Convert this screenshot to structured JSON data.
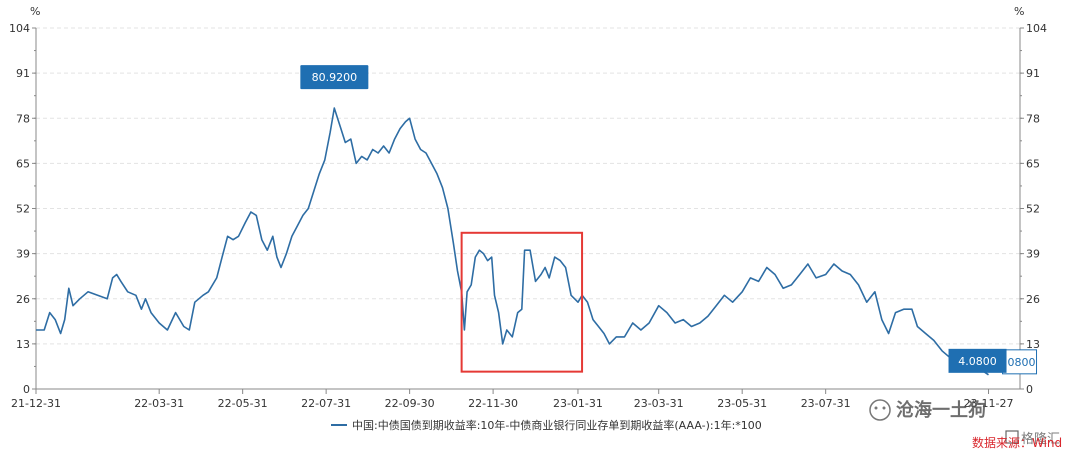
{
  "chart_data": {
    "type": "line",
    "unit_left": "%",
    "unit_right": "%",
    "ylim": [
      0,
      104
    ],
    "y_ticks": [
      0,
      13,
      26,
      39,
      52,
      65,
      78,
      91,
      104
    ],
    "x_range": [
      "2021-12-31",
      "2023-12-20"
    ],
    "x_ticks": [
      {
        "date": "2021-12-31",
        "label": "21-12-31"
      },
      {
        "date": "2022-03-31",
        "label": "22-03-31"
      },
      {
        "date": "2022-05-31",
        "label": "22-05-31"
      },
      {
        "date": "2022-07-31",
        "label": "22-07-31"
      },
      {
        "date": "2022-09-30",
        "label": "22-09-30"
      },
      {
        "date": "2022-11-30",
        "label": "22-11-30"
      },
      {
        "date": "2023-01-31",
        "label": "23-01-31"
      },
      {
        "date": "2023-03-31",
        "label": "23-03-31"
      },
      {
        "date": "2023-05-31",
        "label": "23-05-31"
      },
      {
        "date": "2023-07-31",
        "label": "23-07-31"
      },
      {
        "date": "2023-11-27",
        "label": "23-11-27"
      }
    ],
    "series": [
      {
        "name": "中国:中债国债到期收益率:10年-中债商业银行同业存单到期收益率(AAA-):1年:*100",
        "color": "#2e6da4",
        "points": [
          [
            "2021-12-31",
            17
          ],
          [
            "2022-01-06",
            17
          ],
          [
            "2022-01-10",
            22
          ],
          [
            "2022-01-14",
            20
          ],
          [
            "2022-01-18",
            16
          ],
          [
            "2022-01-21",
            20
          ],
          [
            "2022-01-24",
            29
          ],
          [
            "2022-01-27",
            24
          ],
          [
            "2022-02-01",
            26
          ],
          [
            "2022-02-07",
            28
          ],
          [
            "2022-02-14",
            27
          ],
          [
            "2022-02-21",
            26
          ],
          [
            "2022-02-25",
            32
          ],
          [
            "2022-02-28",
            33
          ],
          [
            "2022-03-03",
            31
          ],
          [
            "2022-03-08",
            28
          ],
          [
            "2022-03-14",
            27
          ],
          [
            "2022-03-18",
            23
          ],
          [
            "2022-03-21",
            26
          ],
          [
            "2022-03-25",
            22
          ],
          [
            "2022-03-31",
            19
          ],
          [
            "2022-04-06",
            17
          ],
          [
            "2022-04-12",
            22
          ],
          [
            "2022-04-18",
            18
          ],
          [
            "2022-04-22",
            17
          ],
          [
            "2022-04-26",
            25
          ],
          [
            "2022-05-02",
            27
          ],
          [
            "2022-05-06",
            28
          ],
          [
            "2022-05-12",
            32
          ],
          [
            "2022-05-16",
            38
          ],
          [
            "2022-05-20",
            44
          ],
          [
            "2022-05-24",
            43
          ],
          [
            "2022-05-28",
            44
          ],
          [
            "2022-06-02",
            48
          ],
          [
            "2022-06-06",
            51
          ],
          [
            "2022-06-10",
            50
          ],
          [
            "2022-06-14",
            43
          ],
          [
            "2022-06-18",
            40
          ],
          [
            "2022-06-22",
            44
          ],
          [
            "2022-06-25",
            38
          ],
          [
            "2022-06-28",
            35
          ],
          [
            "2022-07-02",
            39
          ],
          [
            "2022-07-06",
            44
          ],
          [
            "2022-07-10",
            47
          ],
          [
            "2022-07-14",
            50
          ],
          [
            "2022-07-18",
            52
          ],
          [
            "2022-07-22",
            57
          ],
          [
            "2022-07-26",
            62
          ],
          [
            "2022-07-30",
            66
          ],
          [
            "2022-08-03",
            74
          ],
          [
            "2022-08-06",
            80.92
          ],
          [
            "2022-08-10",
            76
          ],
          [
            "2022-08-14",
            71
          ],
          [
            "2022-08-18",
            72
          ],
          [
            "2022-08-22",
            65
          ],
          [
            "2022-08-26",
            67
          ],
          [
            "2022-08-30",
            66
          ],
          [
            "2022-09-03",
            69
          ],
          [
            "2022-09-07",
            68
          ],
          [
            "2022-09-11",
            70
          ],
          [
            "2022-09-15",
            68
          ],
          [
            "2022-09-19",
            72
          ],
          [
            "2022-09-23",
            75
          ],
          [
            "2022-09-27",
            77
          ],
          [
            "2022-09-30",
            78
          ],
          [
            "2022-10-04",
            72
          ],
          [
            "2022-10-08",
            69
          ],
          [
            "2022-10-12",
            68
          ],
          [
            "2022-10-16",
            65
          ],
          [
            "2022-10-20",
            62
          ],
          [
            "2022-10-24",
            58
          ],
          [
            "2022-10-28",
            52
          ],
          [
            "2022-11-01",
            42
          ],
          [
            "2022-11-04",
            34
          ],
          [
            "2022-11-07",
            28
          ],
          [
            "2022-11-09",
            17
          ],
          [
            "2022-11-11",
            28
          ],
          [
            "2022-11-14",
            30
          ],
          [
            "2022-11-17",
            38
          ],
          [
            "2022-11-20",
            40
          ],
          [
            "2022-11-23",
            39
          ],
          [
            "2022-11-26",
            37
          ],
          [
            "2022-11-29",
            38
          ],
          [
            "2022-12-01",
            27
          ],
          [
            "2022-12-04",
            22
          ],
          [
            "2022-12-07",
            13
          ],
          [
            "2022-12-10",
            17
          ],
          [
            "2022-12-14",
            15
          ],
          [
            "2022-12-18",
            22
          ],
          [
            "2022-12-21",
            23
          ],
          [
            "2022-12-23",
            40
          ],
          [
            "2022-12-27",
            40
          ],
          [
            "2022-12-31",
            31
          ],
          [
            "2023-01-04",
            33
          ],
          [
            "2023-01-07",
            35
          ],
          [
            "2023-01-10",
            32
          ],
          [
            "2023-01-14",
            38
          ],
          [
            "2023-01-18",
            37
          ],
          [
            "2023-01-22",
            35
          ],
          [
            "2023-01-26",
            27
          ],
          [
            "2023-01-31",
            25
          ],
          [
            "2023-02-03",
            27
          ],
          [
            "2023-02-07",
            25
          ],
          [
            "2023-02-11",
            20
          ],
          [
            "2023-02-15",
            18
          ],
          [
            "2023-02-19",
            16
          ],
          [
            "2023-02-23",
            13
          ],
          [
            "2023-02-28",
            15
          ],
          [
            "2023-03-06",
            15
          ],
          [
            "2023-03-12",
            19
          ],
          [
            "2023-03-18",
            17
          ],
          [
            "2023-03-24",
            19
          ],
          [
            "2023-03-31",
            24
          ],
          [
            "2023-04-06",
            22
          ],
          [
            "2023-04-12",
            19
          ],
          [
            "2023-04-18",
            20
          ],
          [
            "2023-04-24",
            18
          ],
          [
            "2023-04-30",
            19
          ],
          [
            "2023-05-06",
            21
          ],
          [
            "2023-05-12",
            24
          ],
          [
            "2023-05-18",
            27
          ],
          [
            "2023-05-24",
            25
          ],
          [
            "2023-05-31",
            28
          ],
          [
            "2023-06-06",
            32
          ],
          [
            "2023-06-12",
            31
          ],
          [
            "2023-06-18",
            35
          ],
          [
            "2023-06-24",
            33
          ],
          [
            "2023-06-30",
            29
          ],
          [
            "2023-07-06",
            30
          ],
          [
            "2023-07-12",
            33
          ],
          [
            "2023-07-18",
            36
          ],
          [
            "2023-07-24",
            32
          ],
          [
            "2023-07-31",
            33
          ],
          [
            "2023-08-06",
            36
          ],
          [
            "2023-08-12",
            34
          ],
          [
            "2023-08-18",
            33
          ],
          [
            "2023-08-24",
            30
          ],
          [
            "2023-08-30",
            25
          ],
          [
            "2023-09-05",
            28
          ],
          [
            "2023-09-10",
            20
          ],
          [
            "2023-09-15",
            16
          ],
          [
            "2023-09-20",
            22
          ],
          [
            "2023-09-26",
            23
          ],
          [
            "2023-10-02",
            23
          ],
          [
            "2023-10-06",
            18
          ],
          [
            "2023-10-12",
            16
          ],
          [
            "2023-10-18",
            14
          ],
          [
            "2023-10-24",
            11
          ],
          [
            "2023-10-30",
            9
          ],
          [
            "2023-11-05",
            6
          ],
          [
            "2023-11-10",
            8
          ],
          [
            "2023-11-15",
            7
          ],
          [
            "2023-11-20",
            6
          ],
          [
            "2023-11-27",
            4.08
          ]
        ]
      }
    ],
    "peak_label": {
      "date": "2022-08-06",
      "value": 80.92,
      "text": "80.9200"
    },
    "last_label": {
      "date": "2023-11-27",
      "value": 4.08,
      "text": "4.0800",
      "side_text": "0800"
    },
    "highlight_box": {
      "x_range": [
        "2022-11-07",
        "2023-02-03"
      ],
      "y_range": [
        5,
        45
      ],
      "color": "#e53935"
    },
    "grid": true,
    "legend_position": "bottom"
  },
  "source": "数据来源：Wind",
  "watermarks": [
    "沧海一土狗",
    "格隆汇"
  ],
  "colors": {
    "line": "#2e6da4",
    "label_bg": "#1f6fb2",
    "box": "#e53935",
    "grid": "#e3e3e3",
    "axis": "#888888"
  }
}
